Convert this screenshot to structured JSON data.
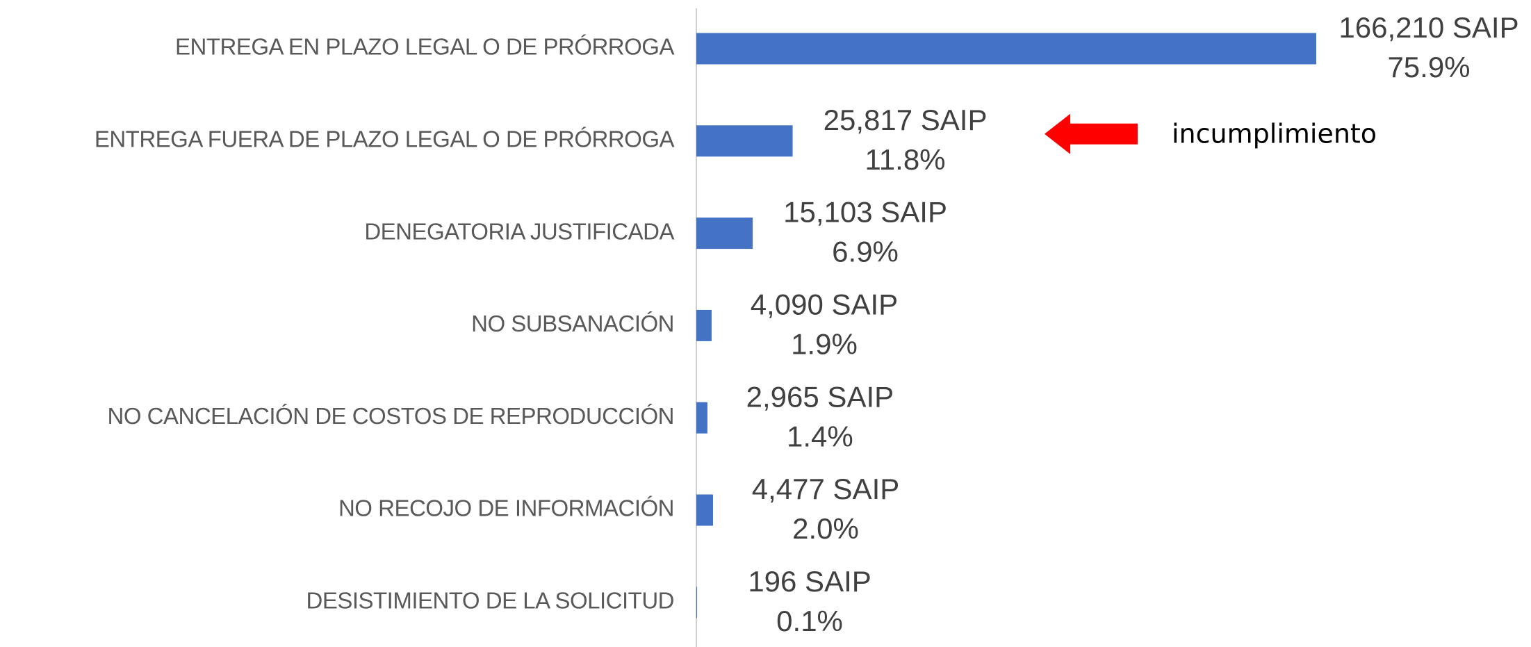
{
  "chart_data": {
    "type": "bar",
    "orientation": "horizontal",
    "categories": [
      "ENTREGA EN PLAZO LEGAL O DE PRÓRROGA",
      "ENTREGA FUERA DE PLAZO LEGAL O DE PRÓRROGA",
      "DENEGATORIA JUSTIFICADA",
      "NO SUBSANACIÓN",
      "NO CANCELACIÓN DE COSTOS DE REPRODUCCIÓN",
      "NO RECOJO DE INFORMACIÓN",
      "DESISTIMIENTO DE LA SOLICITUD"
    ],
    "values": [
      166210,
      25817,
      15103,
      4090,
      2965,
      4477,
      196
    ],
    "value_labels": [
      "166,210 SAIP",
      "25,817 SAIP",
      "15,103 SAIP",
      "4,090 SAIP",
      "2,965 SAIP",
      "4,477 SAIP",
      "196 SAIP"
    ],
    "share_labels": [
      "75.9%",
      "11.8%",
      "6.9%",
      "1.9%",
      "1.4%",
      "2.0%",
      "0.1%"
    ],
    "color": "#4472c4",
    "xlim": [
      0,
      180000
    ],
    "annotation": {
      "text": "incumplimiento",
      "color": "#ff0000",
      "target": 1
    }
  }
}
